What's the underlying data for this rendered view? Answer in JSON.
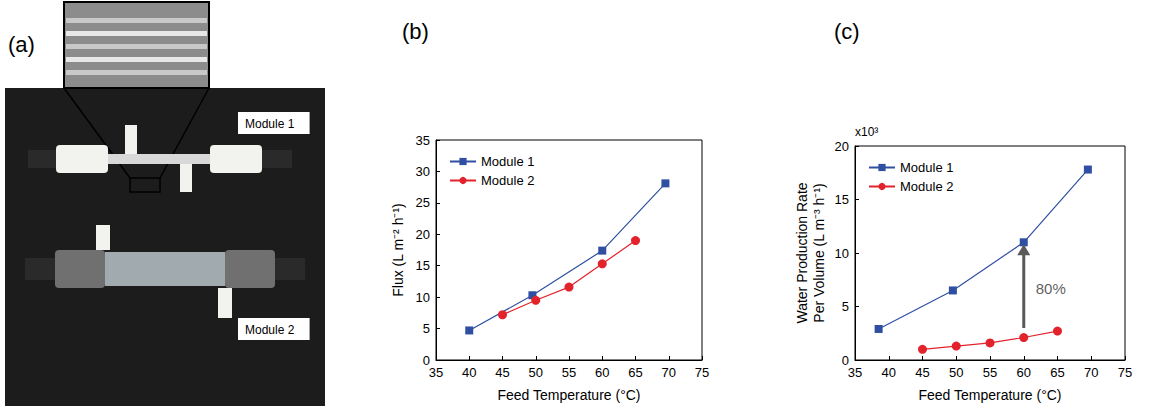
{
  "photo": {
    "panel_label": "(a)",
    "labels": [
      "Module 1",
      "Module 2"
    ]
  },
  "chart_data": [
    {
      "panel_label": "(b)",
      "type": "line",
      "x_label": "Feed Temperature (°C)",
      "y_label": "Flux (L m⁻² h⁻¹)",
      "xlim": [
        35,
        75
      ],
      "xticks": [
        35,
        40,
        45,
        50,
        55,
        60,
        65,
        70,
        75
      ],
      "ylim": [
        0,
        35
      ],
      "yticks": [
        0,
        5,
        10,
        15,
        20,
        25,
        30,
        35
      ],
      "grid": false,
      "legend": "upper left",
      "series": [
        {
          "name": "Module 1",
          "color": "#2f4fa2",
          "marker": "square",
          "x": [
            40,
            49.5,
            60,
            69.5
          ],
          "values": [
            4.7,
            10.3,
            17.4,
            28.1
          ]
        },
        {
          "name": "Module 2",
          "color": "#e3232c",
          "marker": "circle",
          "x": [
            45,
            50,
            55,
            60,
            65
          ],
          "values": [
            7.2,
            9.5,
            11.6,
            15.3,
            19.0
          ]
        }
      ]
    },
    {
      "panel_label": "(c)",
      "type": "line",
      "x_label": "Feed Temperature (°C)",
      "y_label": "Water Production Rate Per Volume (L m⁻³ h⁻¹)",
      "y_multiplier": "x10³",
      "xlim": [
        35,
        75
      ],
      "xticks": [
        35,
        40,
        45,
        50,
        55,
        60,
        65,
        70,
        75
      ],
      "ylim": [
        0,
        20
      ],
      "yticks": [
        0,
        5,
        10,
        15,
        20
      ],
      "grid": false,
      "legend": "upper left",
      "series": [
        {
          "name": "Module 1",
          "color": "#2f4fa2",
          "marker": "square",
          "x": [
            38.5,
            49.5,
            60,
            69.5
          ],
          "values": [
            2.9,
            6.5,
            11.0,
            17.8
          ]
        },
        {
          "name": "Module 2",
          "color": "#e3232c",
          "marker": "circle",
          "x": [
            45,
            50,
            55,
            60,
            65
          ],
          "values": [
            1.0,
            1.3,
            1.6,
            2.1,
            2.7
          ]
        }
      ],
      "annotations": [
        {
          "text": "80%",
          "x": 60,
          "y_start": 3.0,
          "y_end": 10.3
        }
      ]
    }
  ]
}
